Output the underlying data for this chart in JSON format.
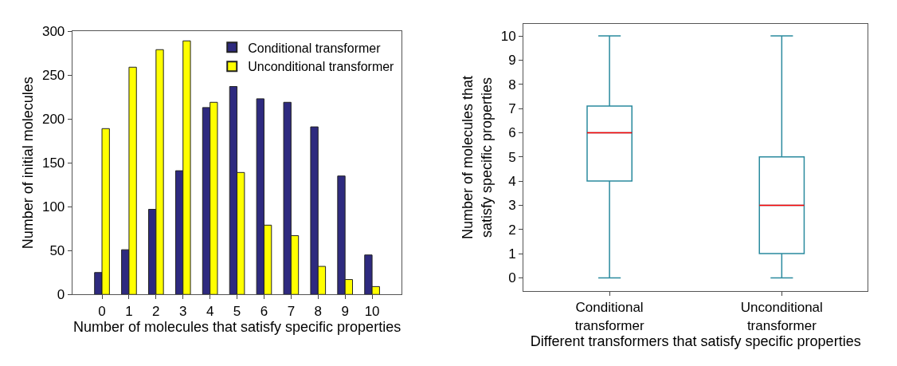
{
  "chart_data": [
    {
      "type": "bar",
      "xlabel": "Number of molecules that satisfy specific properties",
      "ylabel": "Number of initial molecules",
      "categories": [
        "0",
        "1",
        "2",
        "3",
        "4",
        "5",
        "6",
        "7",
        "8",
        "9",
        "10"
      ],
      "series": [
        {
          "name": "Conditional transformer",
          "color": "#2e2a7f",
          "values": [
            25,
            51,
            97,
            141,
            213,
            237,
            223,
            219,
            191,
            135,
            45
          ]
        },
        {
          "name": "Unconditional transformer",
          "color": "#ffff00",
          "values": [
            189,
            259,
            279,
            289,
            219,
            139,
            79,
            67,
            32,
            17,
            9
          ]
        }
      ],
      "ylim": [
        0,
        300
      ],
      "yticks": [
        0,
        50,
        100,
        150,
        200,
        250,
        300
      ],
      "legend": "top right"
    },
    {
      "type": "box",
      "xlabel": "Different transformers that satisfy specific properties",
      "ylabel": "Number of molecules that satisfy specific properties",
      "categories": [
        "Conditional transformer",
        "Unconditional transformer"
      ],
      "boxes": [
        {
          "low": 0,
          "q1": 4,
          "median": 6,
          "q3": 7.1,
          "high": 10
        },
        {
          "low": 0,
          "q1": 1,
          "median": 3,
          "q3": 5,
          "high": 10
        }
      ],
      "colors": [
        "#2a8a9e",
        "#2a8a9e"
      ],
      "ylim": [
        -0.55,
        10.5
      ],
      "yticks": [
        0,
        1,
        2,
        3,
        4,
        5,
        6,
        7,
        8,
        9,
        10
      ]
    }
  ]
}
